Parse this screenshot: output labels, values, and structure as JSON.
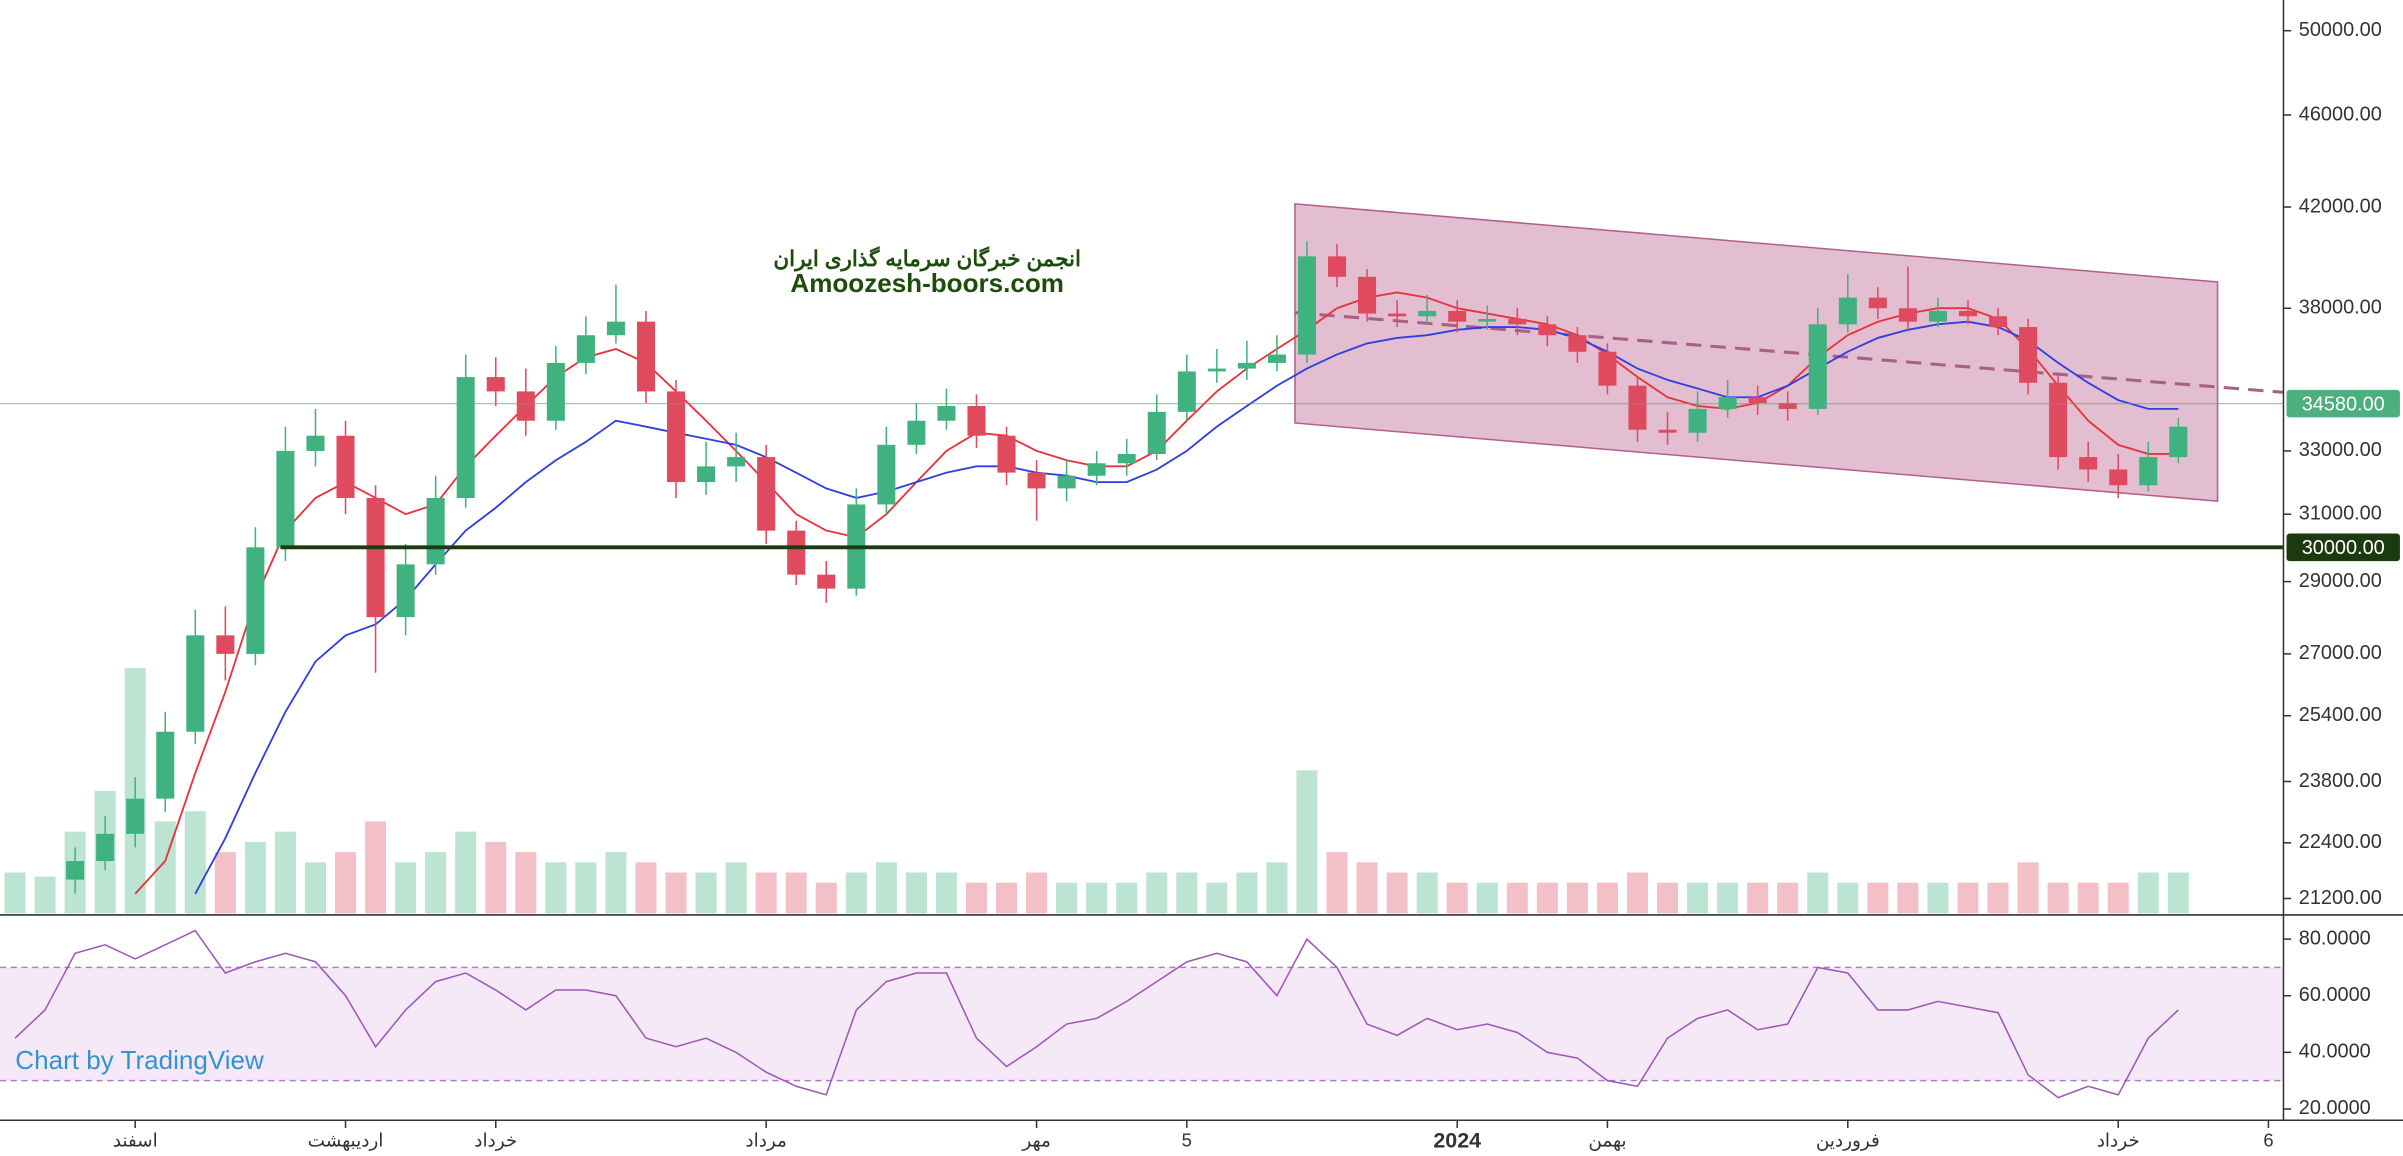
{
  "chart_data": {
    "type": "candlestick",
    "watermark": [
      "انجمن خبرگان سرمایه گذاری ایران",
      "Amoozesh-boors.com"
    ],
    "credit": "Chart by TradingView",
    "categories": [
      null,
      null,
      null,
      null,
      "اسفند",
      null,
      null,
      null,
      null,
      null,
      null,
      "اردیبهشت",
      null,
      null,
      null,
      null,
      "خرداد",
      null,
      null,
      null,
      null,
      null,
      null,
      null,
      null,
      "مرداد",
      null,
      null,
      null,
      null,
      null,
      null,
      null,
      null,
      "مهر",
      null,
      null,
      null,
      null,
      "5",
      null,
      null,
      null,
      null,
      null,
      null,
      null,
      null,
      "2024",
      null,
      null,
      null,
      null,
      "بهمن",
      null,
      null,
      null,
      null,
      null,
      null,
      null,
      "فروردین",
      null,
      null,
      null,
      null,
      null,
      null,
      null,
      null,
      "خرداد",
      null,
      null,
      null,
      null,
      "6"
    ],
    "ohlc": [
      null,
      null,
      [
        21600,
        22300,
        21300,
        22000
      ],
      [
        22000,
        23000,
        21800,
        22600
      ],
      [
        22600,
        23900,
        22300,
        23400
      ],
      [
        23400,
        25500,
        23100,
        25000
      ],
      [
        25000,
        28200,
        24700,
        27500
      ],
      [
        27500,
        28300,
        26300,
        27000
      ],
      [
        27000,
        30600,
        26700,
        30000
      ],
      [
        30000,
        33800,
        29600,
        33000
      ],
      [
        33000,
        34400,
        32500,
        33500
      ],
      [
        33500,
        34000,
        31000,
        31500
      ],
      [
        31500,
        31900,
        26500,
        28000
      ],
      [
        28000,
        30100,
        27500,
        29500
      ],
      [
        29500,
        32200,
        29200,
        31500
      ],
      [
        31500,
        36300,
        31200,
        35500
      ],
      [
        35500,
        36200,
        34500,
        35000
      ],
      [
        35000,
        35800,
        33500,
        34000
      ],
      [
        34000,
        36600,
        33700,
        36000
      ],
      [
        36000,
        37700,
        35600,
        37000
      ],
      [
        37000,
        38900,
        36700,
        37500
      ],
      [
        37500,
        37900,
        34600,
        35000
      ],
      [
        35000,
        35400,
        31500,
        32000
      ],
      [
        32000,
        33300,
        31600,
        32500
      ],
      [
        32500,
        33600,
        32000,
        32800
      ],
      [
        32800,
        33200,
        30100,
        30500
      ],
      [
        30500,
        30800,
        28900,
        29200
      ],
      [
        29200,
        29600,
        28400,
        28800
      ],
      [
        28800,
        31800,
        28600,
        31300
      ],
      [
        31300,
        33800,
        31000,
        33200
      ],
      [
        33200,
        34600,
        32900,
        34000
      ],
      [
        34000,
        35100,
        33700,
        34500
      ],
      [
        34500,
        34900,
        33100,
        33500
      ],
      [
        33500,
        33800,
        31900,
        32300
      ],
      [
        32300,
        32700,
        30800,
        31800
      ],
      [
        31800,
        32700,
        31400,
        32200
      ],
      [
        32200,
        33000,
        31900,
        32600
      ],
      [
        32600,
        33400,
        32200,
        32900
      ],
      [
        32900,
        34900,
        32700,
        34300
      ],
      [
        34300,
        36300,
        34000,
        35700
      ],
      [
        35700,
        36500,
        35300,
        35800
      ],
      [
        35800,
        36800,
        35400,
        36000
      ],
      [
        36000,
        37000,
        35700,
        36300
      ],
      [
        36300,
        40600,
        36000,
        40000
      ],
      [
        40000,
        40500,
        38800,
        39200
      ],
      [
        39200,
        39500,
        37500,
        37800
      ],
      [
        37800,
        38300,
        37300,
        37700
      ],
      [
        37700,
        38500,
        37400,
        37900
      ],
      [
        37900,
        38300,
        37100,
        37500
      ],
      [
        37500,
        38100,
        37200,
        37600
      ],
      [
        37600,
        38000,
        37000,
        37400
      ],
      [
        37400,
        37700,
        36600,
        37000
      ],
      [
        37000,
        37300,
        36000,
        36400
      ],
      [
        36400,
        36700,
        34900,
        35200
      ],
      [
        35200,
        35500,
        33300,
        33700
      ],
      [
        33700,
        34300,
        33200,
        33600
      ],
      [
        33600,
        35000,
        33300,
        34400
      ],
      [
        34400,
        35400,
        34100,
        34800
      ],
      [
        34800,
        35200,
        34200,
        34600
      ],
      [
        34600,
        35000,
        34000,
        34400
      ],
      [
        34400,
        38000,
        34200,
        37400
      ],
      [
        37400,
        39300,
        37100,
        38400
      ],
      [
        38400,
        38800,
        37600,
        38000
      ],
      [
        38000,
        39600,
        37200,
        37500
      ],
      [
        37500,
        38400,
        37300,
        37900
      ],
      [
        37900,
        38300,
        37400,
        37700
      ],
      [
        37700,
        38000,
        37000,
        37300
      ],
      [
        37300,
        37600,
        34900,
        35300
      ],
      [
        35300,
        35600,
        32400,
        32800
      ],
      [
        32800,
        33300,
        32000,
        32400
      ],
      [
        32400,
        32900,
        31500,
        31900
      ],
      [
        31900,
        33300,
        31700,
        32800
      ],
      [
        32800,
        34100,
        32600,
        33800
      ],
      null,
      null,
      null
    ],
    "up_color": "#3fb27f",
    "down_color": "#e04a5f",
    "volume": [
      20,
      18,
      40,
      60,
      120,
      45,
      50,
      30,
      35,
      40,
      25,
      30,
      45,
      25,
      30,
      40,
      35,
      30,
      25,
      25,
      30,
      25,
      20,
      20,
      25,
      20,
      20,
      15,
      20,
      25,
      20,
      20,
      15,
      15,
      20,
      15,
      15,
      15,
      20,
      20,
      15,
      20,
      25,
      70,
      30,
      25,
      20,
      20,
      15,
      15,
      15,
      15,
      15,
      15,
      20,
      15,
      15,
      15,
      15,
      15,
      20,
      15,
      15,
      15,
      15,
      15,
      15,
      25,
      15,
      15,
      15,
      20,
      20,
      null,
      null,
      null
    ],
    "series": [
      {
        "color": "#e8323c",
        "values": [
          null,
          null,
          null,
          null,
          21300,
          22000,
          24000,
          26000,
          28500,
          30500,
          31500,
          32000,
          31500,
          31000,
          31300,
          32500,
          33500,
          34500,
          35500,
          36200,
          36500,
          36000,
          35000,
          34000,
          33000,
          32000,
          31000,
          30500,
          30300,
          31000,
          32000,
          33000,
          33600,
          33500,
          33000,
          32700,
          32500,
          32500,
          33000,
          34000,
          35000,
          35800,
          36500,
          37200,
          38000,
          38400,
          38600,
          38400,
          38000,
          37800,
          37600,
          37400,
          37000,
          36300,
          35500,
          34800,
          34500,
          34400,
          34600,
          35200,
          36200,
          37000,
          37500,
          37800,
          38000,
          38000,
          37600,
          36500,
          35200,
          34000,
          33200,
          32900,
          32900,
          null,
          null,
          null
        ]
      },
      {
        "color": "#2f3fe0",
        "values": [
          null,
          null,
          null,
          null,
          null,
          null,
          21300,
          22500,
          24000,
          25500,
          26800,
          27500,
          27800,
          28500,
          29500,
          30500,
          31200,
          32000,
          32700,
          33300,
          34000,
          33800,
          33600,
          33400,
          33200,
          32800,
          32300,
          31800,
          31500,
          31700,
          32000,
          32300,
          32500,
          32500,
          32300,
          32200,
          32000,
          32000,
          32400,
          33000,
          33800,
          34500,
          35200,
          35800,
          36300,
          36700,
          36900,
          37000,
          37200,
          37300,
          37300,
          37200,
          36900,
          36400,
          35800,
          35400,
          35100,
          34800,
          34800,
          35200,
          35800,
          36400,
          36900,
          37200,
          37400,
          37500,
          37300,
          36800,
          36000,
          35300,
          34700,
          34400,
          34400,
          null,
          null,
          null
        ]
      }
    ],
    "ylim": [
      20890,
      51540
    ],
    "log_scale": true,
    "yticks": [
      {
        "value": 50000,
        "label": "50000.00"
      },
      {
        "value": 46000,
        "label": "46000.00"
      },
      {
        "value": 42000,
        "label": "42000.00"
      },
      {
        "value": 38000,
        "label": "38000.00"
      },
      {
        "value": 33000,
        "label": "33000.00"
      },
      {
        "value": 31000,
        "label": "31000.00"
      },
      {
        "value": 29000,
        "label": "29000.00"
      },
      {
        "value": 27000,
        "label": "27000.00"
      },
      {
        "value": 25400,
        "label": "25400.00"
      },
      {
        "value": 23800,
        "label": "23800.00"
      },
      {
        "value": 22400,
        "label": "22400.00"
      },
      {
        "value": 21200,
        "label": "21200.00"
      }
    ],
    "price_lines": [
      {
        "value": 34580,
        "label": "34580.00",
        "color": "#4caf7d"
      },
      {
        "value": 30000,
        "label": "30000.00",
        "color": "#1b3a0e"
      }
    ],
    "rsi": {
      "color": "#a055b8",
      "values": [
        45,
        55,
        75,
        78,
        73,
        78,
        83,
        68,
        72,
        75,
        72,
        60,
        42,
        55,
        65,
        68,
        62,
        55,
        62,
        62,
        60,
        45,
        42,
        45,
        40,
        33,
        28,
        25,
        55,
        65,
        68,
        68,
        45,
        35,
        42,
        50,
        52,
        58,
        65,
        72,
        75,
        72,
        60,
        80,
        70,
        50,
        46,
        52,
        48,
        50,
        47,
        40,
        38,
        30,
        28,
        45,
        52,
        55,
        48,
        50,
        70,
        68,
        55,
        55,
        58,
        56,
        54,
        32,
        24,
        28,
        25,
        45,
        55,
        null,
        null,
        null
      ],
      "bands": [
        30,
        70
      ],
      "ylim": [
        16,
        88
      ],
      "yticks": [
        {
          "value": 80,
          "label": "80.0000"
        },
        {
          "value": 60,
          "label": "60.0000"
        },
        {
          "value": 40,
          "label": "40.0000"
        },
        {
          "value": 20,
          "label": "20.0000"
        }
      ]
    }
  }
}
